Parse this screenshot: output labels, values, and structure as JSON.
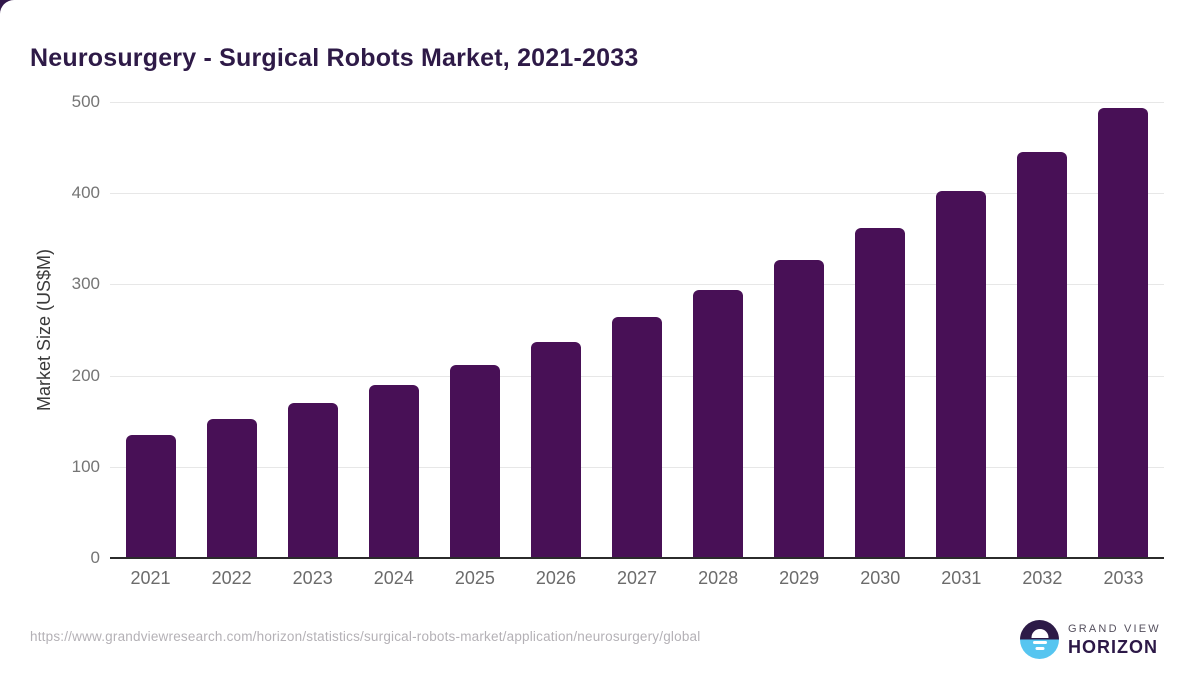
{
  "title": "Neurosurgery - Surgical Robots Market, 2021-2033",
  "chart_data": {
    "type": "bar",
    "categories": [
      "2021",
      "2022",
      "2023",
      "2024",
      "2025",
      "2026",
      "2027",
      "2028",
      "2029",
      "2030",
      "2031",
      "2032",
      "2033"
    ],
    "values": [
      135,
      152,
      170,
      190,
      212,
      237,
      264,
      294,
      327,
      362,
      402,
      445,
      493
    ],
    "title": "Neurosurgery - Surgical Robots Market, 2021-2033",
    "xlabel": "",
    "ylabel": "Market Size (US$M)",
    "ylim": [
      0,
      500
    ],
    "yticks": [
      0,
      100,
      200,
      300,
      400,
      500
    ],
    "grid": true,
    "legend": false,
    "bar_color": "#481056"
  },
  "footer": {
    "url": "https://www.grandviewresearch.com/horizon/statistics/surgical-robots-market/application/neurosurgery/global"
  },
  "logo": {
    "icon": "grand-view-horizon-sunrise-icon",
    "line1": "GRAND VIEW",
    "line2": "HORIZON"
  },
  "colors": {
    "bar": "#481056",
    "title": "#2e1a47",
    "gridline": "#e7e7e7",
    "axis_line": "#2b2b2b",
    "tick_label": "#757575",
    "x_label": "#6b6b6b",
    "footer_url": "#b4b1b6",
    "logo_blue": "#56c5f0",
    "logo_dark": "#2d1b47"
  }
}
